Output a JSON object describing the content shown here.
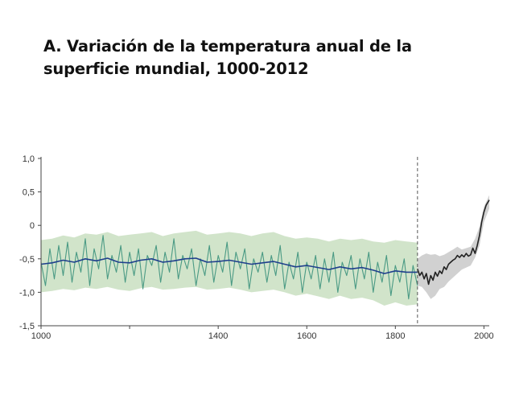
{
  "title": "A. Variación de la temperatura anual de la superficie mundial, 1000-2012",
  "chart_data": {
    "type": "line",
    "title": "A. Variación de la temperatura anual de la superficie mundial, 1000-2012",
    "xlabel": "",
    "ylabel": "",
    "xlim": [
      1000,
      2012
    ],
    "ylim": [
      -1.5,
      1.0
    ],
    "x_ticks": [
      1000,
      1400,
      1600,
      1800,
      2000
    ],
    "x_minor_ticks": [
      1200
    ],
    "y_ticks": [
      1.0,
      0.5,
      0,
      -0.5,
      -1.0,
      -1.5
    ],
    "y_tick_labels": [
      "1,0",
      "0,5",
      "0",
      "-0,5",
      "-1,0",
      "-1,5"
    ],
    "vertical_reference_line": 1850,
    "grid": false,
    "colors": {
      "reconstruction_band": "#cfe3c7",
      "reconstruction_annual": "#4a9a84",
      "reconstruction_smoothed": "#1f3f8c",
      "instrumental_band": "#cfcfcf",
      "instrumental": "#222222"
    },
    "series": [
      {
        "type": "band",
        "x": [
          1000,
          1025,
          1050,
          1075,
          1100,
          1125,
          1150,
          1175,
          1200,
          1225,
          1250,
          1275,
          1300,
          1325,
          1350,
          1375,
          1400,
          1425,
          1450,
          1475,
          1500,
          1525,
          1550,
          1575,
          1600,
          1625,
          1650,
          1675,
          1700,
          1725,
          1750,
          1775,
          1800,
          1825,
          1850
        ],
        "upper": [
          -0.22,
          -0.2,
          -0.15,
          -0.18,
          -0.12,
          -0.14,
          -0.1,
          -0.16,
          -0.14,
          -0.12,
          -0.1,
          -0.16,
          -0.12,
          -0.1,
          -0.08,
          -0.14,
          -0.12,
          -0.1,
          -0.12,
          -0.16,
          -0.12,
          -0.1,
          -0.16,
          -0.2,
          -0.18,
          -0.2,
          -0.24,
          -0.2,
          -0.22,
          -0.2,
          -0.24,
          -0.26,
          -0.22,
          -0.24,
          -0.26
        ],
        "lower": [
          -1.0,
          -0.98,
          -0.95,
          -0.97,
          -0.93,
          -0.95,
          -0.92,
          -0.96,
          -0.98,
          -0.94,
          -0.92,
          -0.96,
          -0.95,
          -0.93,
          -0.92,
          -0.96,
          -0.95,
          -0.93,
          -0.96,
          -1.0,
          -0.98,
          -0.96,
          -1.0,
          -1.05,
          -1.02,
          -1.06,
          -1.1,
          -1.05,
          -1.1,
          -1.08,
          -1.12,
          -1.2,
          -1.15,
          -1.2,
          -1.18
        ]
      },
      {
        "type": "line",
        "x": [
          1000,
          1010,
          1020,
          1030,
          1040,
          1050,
          1060,
          1070,
          1080,
          1090,
          1100,
          1110,
          1120,
          1130,
          1140,
          1150,
          1160,
          1170,
          1180,
          1190,
          1200,
          1210,
          1220,
          1230,
          1240,
          1250,
          1260,
          1270,
          1280,
          1290,
          1300,
          1310,
          1320,
          1330,
          1340,
          1350,
          1360,
          1370,
          1380,
          1390,
          1400,
          1410,
          1420,
          1430,
          1440,
          1450,
          1460,
          1470,
          1480,
          1490,
          1500,
          1510,
          1520,
          1530,
          1540,
          1550,
          1560,
          1570,
          1580,
          1590,
          1600,
          1610,
          1620,
          1630,
          1640,
          1650,
          1660,
          1670,
          1680,
          1690,
          1700,
          1710,
          1720,
          1730,
          1740,
          1750,
          1760,
          1770,
          1780,
          1790,
          1800,
          1810,
          1820,
          1830,
          1840,
          1850
        ],
        "y": [
          -0.55,
          -0.9,
          -0.35,
          -0.8,
          -0.3,
          -0.75,
          -0.25,
          -0.85,
          -0.4,
          -0.7,
          -0.2,
          -0.9,
          -0.35,
          -0.65,
          -0.15,
          -0.8,
          -0.45,
          -0.7,
          -0.3,
          -0.85,
          -0.4,
          -0.75,
          -0.35,
          -0.95,
          -0.45,
          -0.6,
          -0.3,
          -0.85,
          -0.4,
          -0.7,
          -0.2,
          -0.8,
          -0.45,
          -0.65,
          -0.35,
          -0.9,
          -0.5,
          -0.75,
          -0.3,
          -0.85,
          -0.45,
          -0.7,
          -0.25,
          -0.9,
          -0.4,
          -0.65,
          -0.35,
          -0.95,
          -0.5,
          -0.7,
          -0.4,
          -0.85,
          -0.45,
          -0.75,
          -0.3,
          -0.95,
          -0.55,
          -0.8,
          -0.4,
          -1.0,
          -0.55,
          -0.8,
          -0.45,
          -0.95,
          -0.5,
          -0.85,
          -0.4,
          -1.0,
          -0.55,
          -0.75,
          -0.45,
          -0.95,
          -0.5,
          -0.8,
          -0.4,
          -1.0,
          -0.55,
          -0.85,
          -0.45,
          -1.05,
          -0.6,
          -0.85,
          -0.5,
          -1.1,
          -0.6,
          -0.9
        ]
      },
      {
        "type": "line",
        "x": [
          1000,
          1025,
          1050,
          1075,
          1100,
          1125,
          1150,
          1175,
          1200,
          1225,
          1250,
          1275,
          1300,
          1325,
          1350,
          1375,
          1400,
          1425,
          1450,
          1475,
          1500,
          1525,
          1550,
          1575,
          1600,
          1625,
          1650,
          1675,
          1700,
          1725,
          1750,
          1775,
          1800,
          1825,
          1850
        ],
        "y": [
          -0.58,
          -0.56,
          -0.52,
          -0.55,
          -0.5,
          -0.53,
          -0.49,
          -0.55,
          -0.56,
          -0.52,
          -0.5,
          -0.55,
          -0.53,
          -0.5,
          -0.49,
          -0.55,
          -0.54,
          -0.52,
          -0.55,
          -0.58,
          -0.56,
          -0.54,
          -0.58,
          -0.62,
          -0.6,
          -0.63,
          -0.66,
          -0.62,
          -0.65,
          -0.63,
          -0.67,
          -0.72,
          -0.68,
          -0.7,
          -0.7
        ]
      },
      {
        "type": "band",
        "x": [
          1850,
          1860,
          1870,
          1880,
          1890,
          1900,
          1910,
          1920,
          1930,
          1940,
          1950,
          1960,
          1970,
          1980,
          1990,
          2000,
          2012
        ],
        "upper": [
          -0.5,
          -0.45,
          -0.42,
          -0.44,
          -0.43,
          -0.46,
          -0.44,
          -0.4,
          -0.36,
          -0.32,
          -0.36,
          -0.34,
          -0.32,
          -0.2,
          -0.02,
          0.28,
          0.45
        ],
        "lower": [
          -0.9,
          -0.92,
          -1.0,
          -1.1,
          -1.05,
          -0.95,
          -0.92,
          -0.84,
          -0.78,
          -0.72,
          -0.66,
          -0.63,
          -0.6,
          -0.48,
          -0.3,
          0.05,
          0.25
        ]
      },
      {
        "type": "line",
        "x": [
          1850,
          1855,
          1860,
          1865,
          1870,
          1875,
          1880,
          1885,
          1890,
          1895,
          1900,
          1905,
          1910,
          1915,
          1920,
          1925,
          1930,
          1935,
          1940,
          1945,
          1950,
          1955,
          1960,
          1965,
          1970,
          1975,
          1980,
          1985,
          1990,
          1995,
          2000,
          2005,
          2012
        ],
        "y": [
          -0.65,
          -0.75,
          -0.7,
          -0.8,
          -0.72,
          -0.88,
          -0.75,
          -0.82,
          -0.7,
          -0.76,
          -0.68,
          -0.72,
          -0.62,
          -0.66,
          -0.58,
          -0.55,
          -0.52,
          -0.5,
          -0.45,
          -0.48,
          -0.44,
          -0.47,
          -0.42,
          -0.46,
          -0.44,
          -0.34,
          -0.42,
          -0.3,
          -0.15,
          0.05,
          0.2,
          0.3,
          0.38
        ]
      }
    ]
  }
}
